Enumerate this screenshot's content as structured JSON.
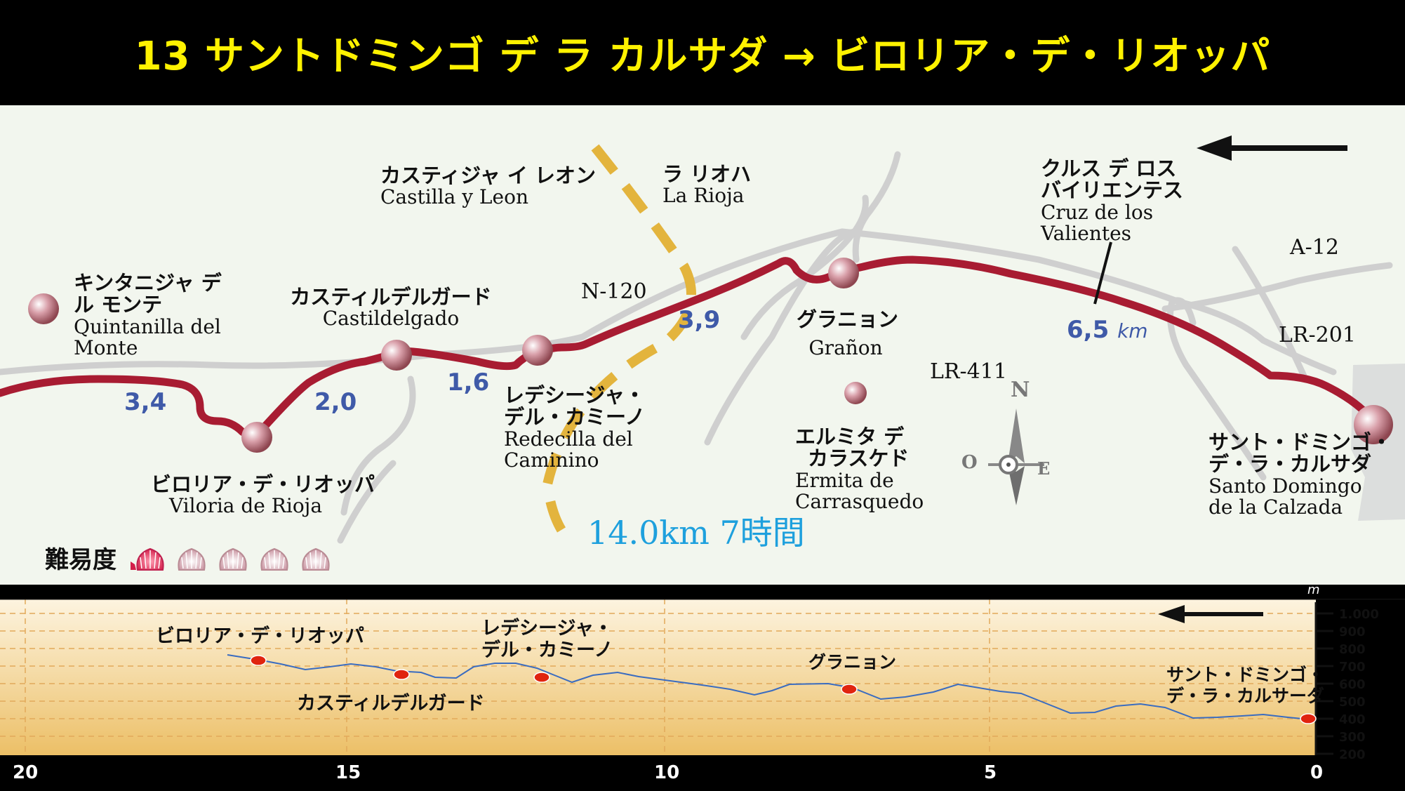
{
  "title": "13 サントドミンゴ デ ラ カルサダ → ビロリア・デ・リオッパ",
  "map": {
    "regions": [
      {
        "jp": "カスティジャ イ レオン",
        "es": "Castilla y Leon"
      },
      {
        "jp": "ラ リオハ",
        "es": "La Rioja"
      }
    ],
    "places": {
      "quintanilla": {
        "jp1": "キンタニジャ デ",
        "jp2": "ル モンテ",
        "es1": "Quintanilla del",
        "es2": "Monte"
      },
      "castildelgado": {
        "jp": "カスティルデルガード",
        "es": "Castildelgado"
      },
      "viloria": {
        "jp": "ビロリア・デ・リオッパ",
        "es": "Viloria de Rioja"
      },
      "redecilla": {
        "jp1": "レデシージャ・",
        "jp2": "デル・カミーノ",
        "es1": "Redecilla del",
        "es2": "Caminino"
      },
      "granon": {
        "jp": "グラニョン",
        "es": "Grañon"
      },
      "ermita": {
        "jp1": "エルミタ デ",
        "jp2": "カラスケド",
        "es1": "Ermita de",
        "es2": "Carrasquedo"
      },
      "cruz": {
        "jp1": "クルス デ ロス",
        "jp2": "バイリエンテス",
        "es1": "Cruz de los",
        "es2": "Valientes"
      },
      "santo": {
        "jp1": "サント・ドミンゴ・",
        "jp2": "デ・ラ・カルサダ",
        "es1": "Santo Domingo",
        "es2": "de la Calzada"
      }
    },
    "roads": [
      "N-120",
      "LR-411",
      "A-12",
      "LR-201"
    ],
    "distances": [
      "3,4",
      "2,0",
      "1,6",
      "3,9",
      "6,5"
    ],
    "distance_unit": "km",
    "total": "14.0km 7時間",
    "difficulty": {
      "label": "難易度",
      "level": 1,
      "max": 5
    },
    "compass": {
      "n": "N",
      "o": "O",
      "e": "E"
    }
  },
  "profile": {
    "y_unit": "m",
    "y_ticks": [
      "1.000",
      "900",
      "800",
      "700",
      "600",
      "500",
      "400",
      "300",
      "200"
    ],
    "x_ticks": [
      "20",
      "15",
      "10",
      "5",
      "0"
    ],
    "labels": {
      "viloria": "ビロリア・デ・リオッパ",
      "redecilla1": "レデシージャ・",
      "redecilla2": "デル・カミーノ",
      "castildelgado": "カスティルデルガード",
      "granon": "グラニョン",
      "santo1": "サント・ドミンゴ・",
      "santo2": "デ・ラ・カルサーダ"
    }
  },
  "colors": {
    "route": "#a81c32",
    "regional_border": "#e3b43d",
    "distance": "#3f5aa8",
    "total": "#1ea0dd",
    "title": "#fff200"
  }
}
